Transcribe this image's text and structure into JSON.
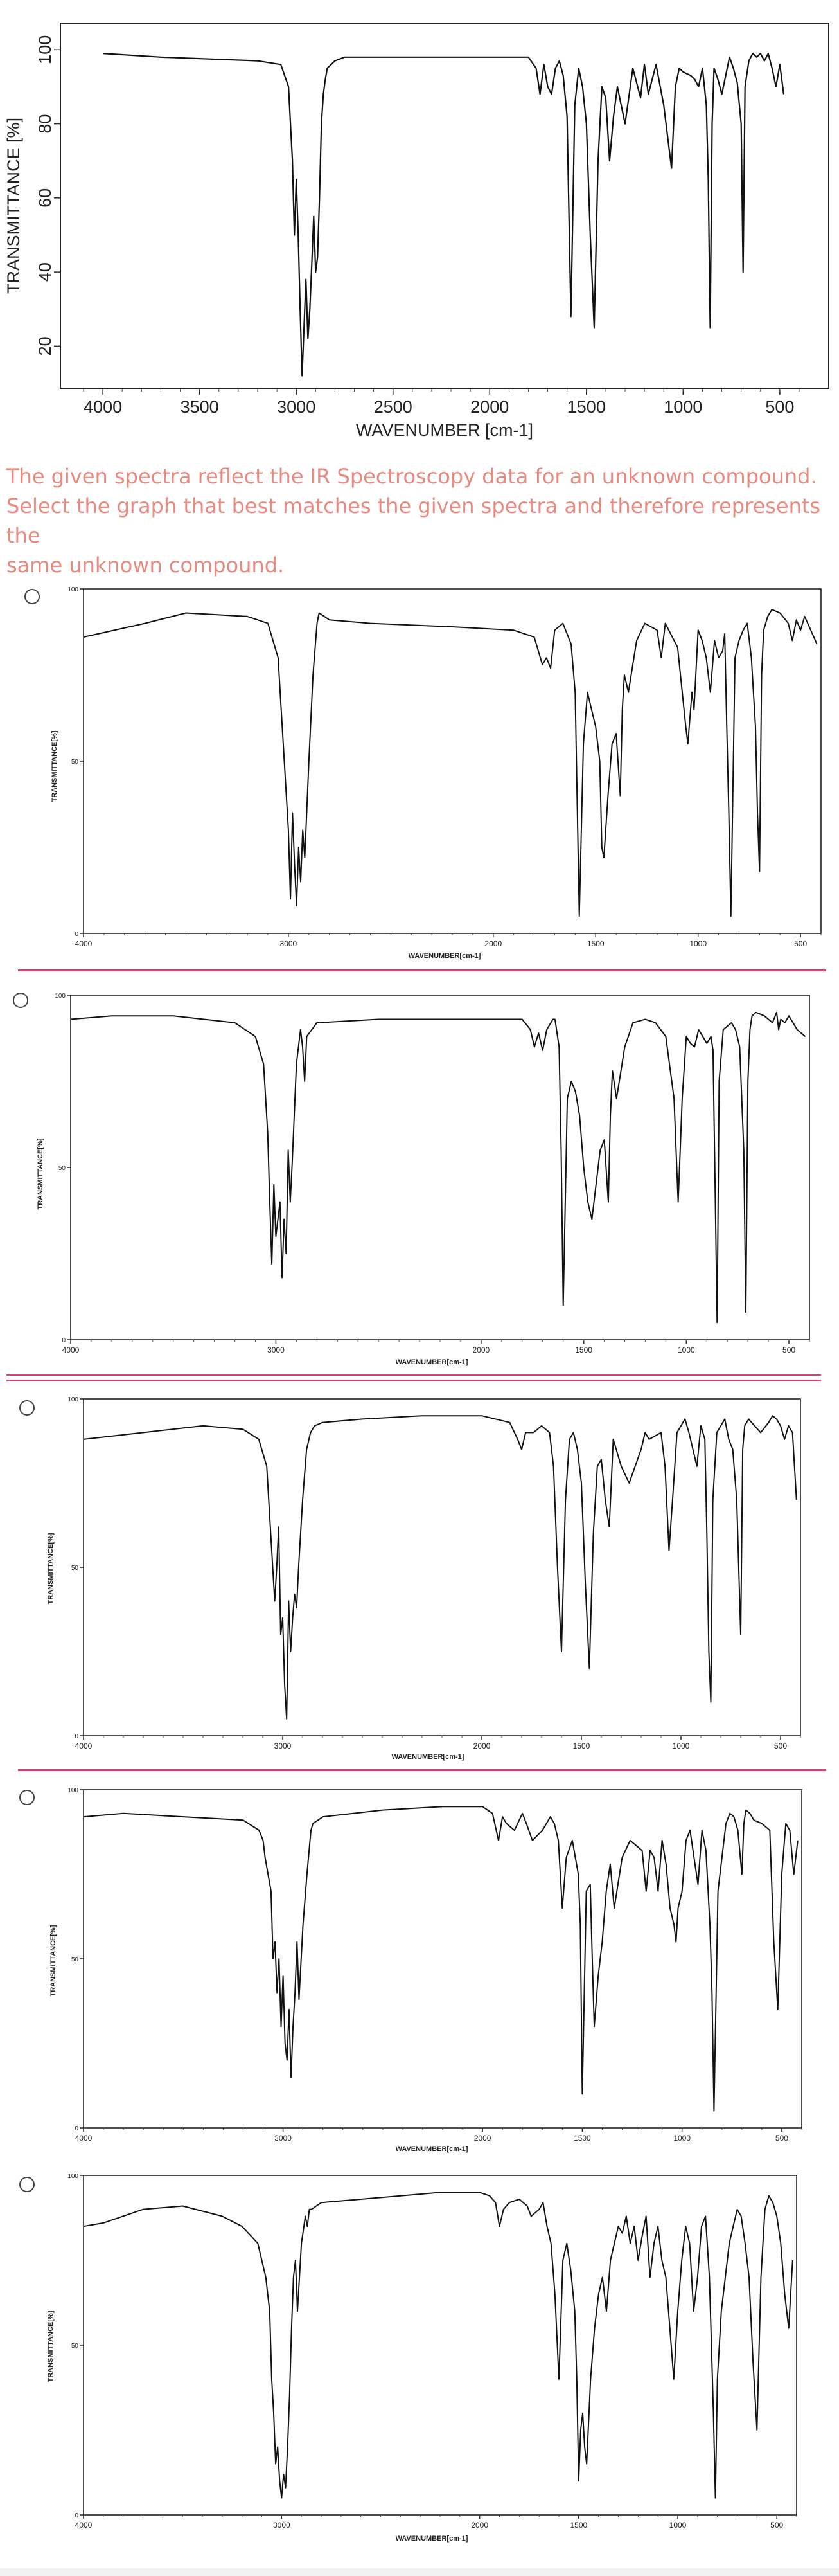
{
  "question": {
    "line1": "The given spectra reflect the IR Spectroscopy data for an unknown compound.",
    "line2": "Select the graph that best matches the given spectra and therefore represents the",
    "line3": "same unknown compound."
  },
  "colors": {
    "question_text": "#e78a80",
    "separator": "#d2417a",
    "spectrum_line": "#111111"
  },
  "chart_data": [
    {
      "type": "line",
      "role": "given-spectrum",
      "xlabel": "WAVENUMBER [cm-1]",
      "ylabel": "TRANSMITTANCE [%]",
      "xlim": [
        4100,
        400
      ],
      "ylim": [
        10,
        103
      ],
      "x_reversed": true,
      "xticks": [
        4000,
        3500,
        3000,
        2500,
        2000,
        1500,
        1000,
        500
      ],
      "yticks": [
        20,
        40,
        60,
        80,
        100
      ],
      "x": [
        4000,
        3700,
        3200,
        3080,
        3040,
        3020,
        3010,
        3000,
        2990,
        2980,
        2970,
        2960,
        2950,
        2940,
        2930,
        2920,
        2910,
        2900,
        2890,
        2880,
        2870,
        2860,
        2850,
        2840,
        2800,
        2750,
        2700,
        2500,
        2000,
        1800,
        1760,
        1740,
        1720,
        1700,
        1680,
        1660,
        1640,
        1620,
        1600,
        1580,
        1560,
        1540,
        1520,
        1500,
        1480,
        1460,
        1440,
        1420,
        1400,
        1380,
        1360,
        1340,
        1300,
        1260,
        1220,
        1200,
        1180,
        1160,
        1140,
        1100,
        1060,
        1040,
        1020,
        1000,
        960,
        940,
        920,
        900,
        880,
        870,
        860,
        850,
        840,
        820,
        800,
        780,
        760,
        740,
        720,
        700,
        690,
        680,
        660,
        640,
        620,
        600,
        580,
        560,
        540,
        520,
        500,
        480
      ],
      "y": [
        99,
        98,
        97,
        96,
        90,
        70,
        50,
        65,
        50,
        30,
        12,
        25,
        38,
        22,
        30,
        42,
        55,
        40,
        44,
        60,
        80,
        88,
        92,
        95,
        97,
        98,
        98,
        98,
        98,
        98,
        95,
        88,
        96,
        90,
        88,
        95,
        97,
        93,
        82,
        28,
        85,
        95,
        90,
        80,
        50,
        25,
        70,
        90,
        87,
        70,
        82,
        90,
        80,
        95,
        87,
        96,
        88,
        92,
        96,
        85,
        68,
        90,
        95,
        94,
        93,
        92,
        90,
        95,
        85,
        65,
        25,
        80,
        95,
        92,
        88,
        93,
        98,
        95,
        91,
        80,
        40,
        90,
        97,
        99,
        98,
        99,
        97,
        99,
        95,
        90,
        96,
        88
      ]
    },
    {
      "type": "line",
      "role": "option-1",
      "xlabel": "WAVENUMBER[cm-1]",
      "ylabel": "TRANSMITTANCE[%]",
      "xlim": [
        4000,
        400
      ],
      "ylim": [
        0,
        100
      ],
      "x_reversed": true,
      "xticks": [
        4000,
        3000,
        2000,
        1500,
        1000,
        500
      ],
      "xtick_labels": [
        "4000",
        "3000",
        "2000",
        "1500",
        "1000",
        "500"
      ],
      "yticks": [
        0,
        50,
        100
      ],
      "x": [
        4000,
        3700,
        3500,
        3200,
        3100,
        3050,
        3020,
        3000,
        2990,
        2980,
        2970,
        2960,
        2950,
        2940,
        2930,
        2920,
        2900,
        2880,
        2860,
        2850,
        2800,
        2600,
        2200,
        1900,
        1800,
        1760,
        1740,
        1720,
        1700,
        1660,
        1620,
        1600,
        1580,
        1560,
        1540,
        1520,
        1500,
        1480,
        1470,
        1460,
        1440,
        1420,
        1400,
        1380,
        1370,
        1360,
        1340,
        1300,
        1260,
        1200,
        1180,
        1160,
        1100,
        1060,
        1050,
        1030,
        1020,
        1000,
        980,
        960,
        940,
        920,
        900,
        880,
        870,
        860,
        850,
        840,
        820,
        800,
        780,
        760,
        740,
        720,
        710,
        700,
        690,
        680,
        660,
        640,
        600,
        560,
        540,
        520,
        500,
        480,
        450,
        420
      ],
      "y": [
        86,
        90,
        93,
        92,
        90,
        80,
        50,
        30,
        10,
        35,
        20,
        8,
        25,
        15,
        30,
        22,
        50,
        75,
        90,
        93,
        91,
        90,
        89,
        88,
        86,
        78,
        80,
        77,
        88,
        90,
        84,
        70,
        5,
        55,
        70,
        65,
        60,
        50,
        25,
        22,
        40,
        55,
        58,
        40,
        65,
        75,
        70,
        85,
        90,
        88,
        80,
        90,
        83,
        60,
        55,
        70,
        65,
        88,
        85,
        80,
        70,
        85,
        80,
        82,
        87,
        60,
        35,
        5,
        80,
        85,
        88,
        90,
        80,
        60,
        35,
        18,
        75,
        88,
        92,
        94,
        93,
        90,
        85,
        91,
        88,
        92,
        88,
        84
      ]
    },
    {
      "type": "line",
      "role": "option-2",
      "xlabel": "WAVENUMBER[cm-1]",
      "ylabel": "TRANSMITTANCE[%]",
      "xlim": [
        4000,
        400
      ],
      "ylim": [
        0,
        100
      ],
      "x_reversed": true,
      "xticks": [
        4000,
        3000,
        2000,
        1500,
        1000,
        500
      ],
      "xtick_labels": [
        "4000",
        "3000",
        "2000",
        "1500",
        "1000",
        "500"
      ],
      "yticks": [
        0,
        50,
        100
      ],
      "x": [
        4000,
        3800,
        3500,
        3200,
        3100,
        3060,
        3040,
        3030,
        3020,
        3010,
        3000,
        2990,
        2980,
        2970,
        2960,
        2950,
        2940,
        2930,
        2920,
        2900,
        2880,
        2870,
        2860,
        2850,
        2800,
        2500,
        2000,
        1800,
        1760,
        1740,
        1720,
        1700,
        1680,
        1650,
        1640,
        1620,
        1610,
        1600,
        1580,
        1560,
        1540,
        1520,
        1500,
        1480,
        1460,
        1440,
        1420,
        1400,
        1380,
        1370,
        1360,
        1340,
        1300,
        1260,
        1200,
        1150,
        1100,
        1060,
        1040,
        1030,
        1020,
        1000,
        980,
        960,
        940,
        920,
        900,
        880,
        870,
        860,
        850,
        840,
        820,
        800,
        780,
        760,
        740,
        720,
        710,
        700,
        690,
        680,
        660,
        620,
        600,
        580,
        560,
        550,
        540,
        520,
        500,
        480,
        460,
        420
      ],
      "y": [
        93,
        94,
        94,
        92,
        88,
        80,
        60,
        40,
        22,
        45,
        30,
        35,
        40,
        18,
        35,
        25,
        55,
        40,
        52,
        80,
        90,
        85,
        75,
        88,
        92,
        93,
        93,
        93,
        90,
        85,
        89,
        84,
        90,
        93,
        93,
        85,
        55,
        10,
        70,
        75,
        72,
        65,
        50,
        40,
        35,
        45,
        55,
        58,
        40,
        65,
        78,
        70,
        85,
        92,
        93,
        92,
        88,
        70,
        40,
        55,
        70,
        88,
        86,
        85,
        90,
        88,
        86,
        88,
        84,
        45,
        5,
        75,
        90,
        91,
        92,
        90,
        85,
        55,
        8,
        75,
        90,
        94,
        95,
        94,
        93,
        92,
        95,
        90,
        93,
        92,
        94,
        92,
        90,
        88
      ]
    },
    {
      "type": "line",
      "role": "option-3",
      "xlabel": "WAVENUMBER[cm-1]",
      "ylabel": "TRANSMITTANCE[%]",
      "xlim": [
        4000,
        400
      ],
      "ylim": [
        0,
        100
      ],
      "x_reversed": true,
      "xticks": [
        4000,
        3000,
        2000,
        1500,
        1000,
        500
      ],
      "xtick_labels": [
        "4000",
        "3000",
        "2000",
        "1500",
        "1000",
        "500"
      ],
      "yticks": [
        0,
        50,
        100
      ],
      "x": [
        4000,
        3700,
        3400,
        3200,
        3120,
        3080,
        3060,
        3040,
        3030,
        3020,
        3010,
        3000,
        2990,
        2980,
        2970,
        2960,
        2950,
        2940,
        2930,
        2920,
        2900,
        2880,
        2860,
        2840,
        2800,
        2600,
        2300,
        2000,
        1860,
        1820,
        1800,
        1780,
        1740,
        1700,
        1660,
        1640,
        1620,
        1600,
        1580,
        1560,
        1540,
        1520,
        1500,
        1480,
        1460,
        1440,
        1420,
        1400,
        1380,
        1360,
        1340,
        1300,
        1260,
        1200,
        1180,
        1160,
        1100,
        1080,
        1060,
        1040,
        1020,
        1000,
        980,
        960,
        940,
        920,
        900,
        880,
        870,
        860,
        850,
        840,
        820,
        800,
        780,
        760,
        740,
        720,
        710,
        700,
        690,
        680,
        660,
        600,
        560,
        540,
        520,
        500,
        480,
        460,
        440,
        420
      ],
      "y": [
        88,
        90,
        92,
        91,
        88,
        80,
        60,
        40,
        50,
        62,
        30,
        35,
        15,
        5,
        40,
        25,
        35,
        42,
        38,
        50,
        70,
        85,
        90,
        92,
        93,
        94,
        95,
        95,
        93,
        88,
        85,
        90,
        90,
        92,
        90,
        80,
        50,
        25,
        70,
        88,
        90,
        85,
        75,
        45,
        20,
        60,
        80,
        82,
        70,
        62,
        88,
        80,
        75,
        85,
        90,
        88,
        90,
        80,
        55,
        72,
        90,
        92,
        94,
        90,
        85,
        80,
        92,
        88,
        60,
        25,
        10,
        70,
        90,
        92,
        94,
        88,
        85,
        70,
        50,
        30,
        85,
        92,
        94,
        90,
        93,
        95,
        94,
        92,
        88,
        92,
        90,
        70
      ]
    },
    {
      "type": "line",
      "role": "option-4",
      "xlabel": "WAVENUMBER[cm-1]",
      "ylabel": "TRANSMITTANCE[%]",
      "xlim": [
        4000,
        400
      ],
      "ylim": [
        0,
        100
      ],
      "x_reversed": true,
      "xticks": [
        4000,
        3000,
        2000,
        1500,
        1000,
        500
      ],
      "xtick_labels": [
        "4000",
        "3000",
        "2000",
        "1500",
        "1000",
        "500"
      ],
      "yticks": [
        0,
        50,
        100
      ],
      "x": [
        4000,
        3800,
        3500,
        3200,
        3120,
        3100,
        3090,
        3060,
        3050,
        3040,
        3030,
        3020,
        3010,
        3000,
        2990,
        2980,
        2970,
        2960,
        2950,
        2940,
        2930,
        2920,
        2900,
        2880,
        2860,
        2850,
        2800,
        2500,
        2200,
        2000,
        1950,
        1920,
        1900,
        1880,
        1840,
        1800,
        1780,
        1750,
        1700,
        1660,
        1640,
        1620,
        1600,
        1580,
        1550,
        1520,
        1510,
        1500,
        1490,
        1480,
        1460,
        1450,
        1440,
        1420,
        1400,
        1380,
        1360,
        1340,
        1300,
        1260,
        1200,
        1180,
        1160,
        1140,
        1120,
        1100,
        1080,
        1060,
        1040,
        1030,
        1020,
        1000,
        980,
        960,
        940,
        920,
        900,
        880,
        860,
        850,
        840,
        820,
        800,
        780,
        760,
        740,
        720,
        700,
        690,
        680,
        660,
        640,
        600,
        560,
        540,
        520,
        500,
        480,
        460,
        440,
        420
      ],
      "y": [
        92,
        93,
        92,
        91,
        88,
        85,
        80,
        70,
        50,
        55,
        40,
        50,
        30,
        45,
        25,
        20,
        35,
        15,
        30,
        40,
        55,
        38,
        60,
        75,
        88,
        90,
        92,
        94,
        95,
        95,
        93,
        85,
        92,
        90,
        88,
        93,
        90,
        85,
        88,
        92,
        90,
        85,
        65,
        80,
        85,
        75,
        60,
        10,
        40,
        70,
        72,
        50,
        30,
        45,
        55,
        70,
        78,
        65,
        80,
        85,
        82,
        70,
        82,
        80,
        70,
        85,
        78,
        65,
        60,
        55,
        65,
        70,
        85,
        88,
        80,
        72,
        88,
        82,
        60,
        40,
        5,
        70,
        80,
        90,
        93,
        92,
        88,
        75,
        90,
        94,
        93,
        91,
        90,
        88,
        55,
        35,
        75,
        90,
        88,
        75,
        85
      ]
    },
    {
      "type": "line",
      "role": "option-5",
      "xlabel": "WAVENUMBER[cm-1]",
      "ylabel": "TRANSMITTANCE[%]",
      "xlim": [
        4000,
        400
      ],
      "ylim": [
        0,
        100
      ],
      "x_reversed": true,
      "xticks": [
        4000,
        3000,
        2000,
        1500,
        1000,
        500
      ],
      "xtick_labels": [
        "4000",
        "3000",
        "2000",
        "1500",
        "1000",
        "500"
      ],
      "yticks": [
        0,
        50,
        100
      ],
      "x": [
        4000,
        3900,
        3700,
        3500,
        3300,
        3200,
        3120,
        3100,
        3080,
        3060,
        3050,
        3040,
        3030,
        3020,
        3010,
        3000,
        2990,
        2980,
        2970,
        2960,
        2950,
        2940,
        2930,
        2920,
        2900,
        2880,
        2870,
        2860,
        2850,
        2800,
        2600,
        2400,
        2200,
        2000,
        1950,
        1920,
        1900,
        1880,
        1850,
        1800,
        1760,
        1740,
        1700,
        1680,
        1660,
        1640,
        1620,
        1600,
        1580,
        1560,
        1540,
        1520,
        1510,
        1500,
        1490,
        1480,
        1470,
        1460,
        1440,
        1420,
        1400,
        1380,
        1360,
        1340,
        1320,
        1300,
        1280,
        1260,
        1240,
        1220,
        1200,
        1180,
        1160,
        1140,
        1120,
        1100,
        1080,
        1060,
        1040,
        1020,
        1000,
        980,
        960,
        940,
        920,
        900,
        880,
        860,
        840,
        830,
        820,
        810,
        800,
        780,
        760,
        740,
        720,
        700,
        680,
        660,
        640,
        620,
        600,
        580,
        560,
        540,
        520,
        500,
        480,
        460,
        440,
        420
      ],
      "y": [
        85,
        86,
        90,
        91,
        88,
        85,
        80,
        75,
        70,
        60,
        40,
        30,
        15,
        20,
        10,
        5,
        12,
        8,
        20,
        35,
        55,
        70,
        75,
        60,
        80,
        88,
        85,
        90,
        90,
        92,
        93,
        94,
        95,
        95,
        94,
        92,
        85,
        90,
        92,
        93,
        91,
        88,
        90,
        92,
        85,
        80,
        65,
        40,
        75,
        80,
        72,
        60,
        40,
        10,
        25,
        30,
        20,
        15,
        40,
        55,
        65,
        70,
        60,
        75,
        80,
        85,
        83,
        88,
        80,
        85,
        75,
        82,
        88,
        70,
        80,
        85,
        75,
        70,
        55,
        40,
        60,
        75,
        85,
        80,
        60,
        70,
        85,
        88,
        70,
        50,
        30,
        5,
        40,
        60,
        70,
        80,
        85,
        90,
        88,
        80,
        70,
        45,
        25,
        70,
        90,
        94,
        92,
        88,
        80,
        65,
        55,
        75
      ]
    }
  ]
}
